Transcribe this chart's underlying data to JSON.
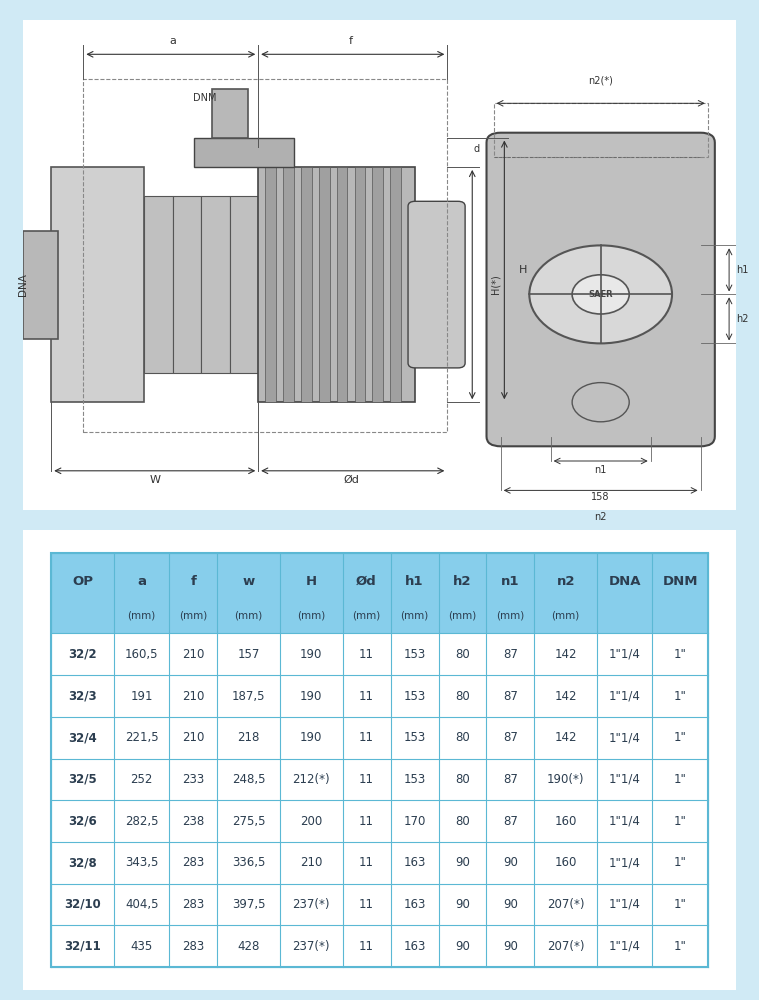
{
  "table_headers": [
    "OP",
    "a",
    "f",
    "w",
    "H",
    "Ød",
    "h1",
    "h2",
    "n1",
    "n2",
    "DNA",
    "DNM"
  ],
  "table_subheaders": [
    "",
    "(mm)",
    "(mm)",
    "(mm)",
    "(mm)",
    "(mm)",
    "(mm)",
    "(mm)",
    "(mm)",
    "(mm)",
    "",
    ""
  ],
  "table_rows": [
    [
      "32/2",
      "160,5",
      "210",
      "157",
      "190",
      "11",
      "153",
      "80",
      "87",
      "142",
      "1\"1/4",
      "1\""
    ],
    [
      "32/3",
      "191",
      "210",
      "187,5",
      "190",
      "11",
      "153",
      "80",
      "87",
      "142",
      "1\"1/4",
      "1\""
    ],
    [
      "32/4",
      "221,5",
      "210",
      "218",
      "190",
      "11",
      "153",
      "80",
      "87",
      "142",
      "1\"1/4",
      "1\""
    ],
    [
      "32/5",
      "252",
      "233",
      "248,5",
      "212(*)",
      "11",
      "153",
      "80",
      "87",
      "190(*)",
      "1\"1/4",
      "1\""
    ],
    [
      "32/6",
      "282,5",
      "238",
      "275,5",
      "200",
      "11",
      "170",
      "80",
      "87",
      "160",
      "1\"1/4",
      "1\""
    ],
    [
      "32/8",
      "343,5",
      "283",
      "336,5",
      "210",
      "11",
      "163",
      "90",
      "90",
      "160",
      "1\"1/4",
      "1\""
    ],
    [
      "32/10",
      "404,5",
      "283",
      "397,5",
      "237(*)",
      "11",
      "163",
      "90",
      "90",
      "207(*)",
      "1\"1/4",
      "1\""
    ],
    [
      "32/11",
      "435",
      "283",
      "428",
      "237(*)",
      "11",
      "163",
      "90",
      "90",
      "207(*)",
      "1\"1/4",
      "1\""
    ]
  ],
  "header_bg": "#87ceeb",
  "header_bg_dark": "#5bb8d4",
  "row_bg_white": "#ffffff",
  "outer_border_color": "#5bb8d4",
  "diagram_bg": "#e8f4f8",
  "table_bg": "#e8f4f8",
  "text_color_dark": "#2c3e50",
  "text_color_header": "#2c3e50"
}
